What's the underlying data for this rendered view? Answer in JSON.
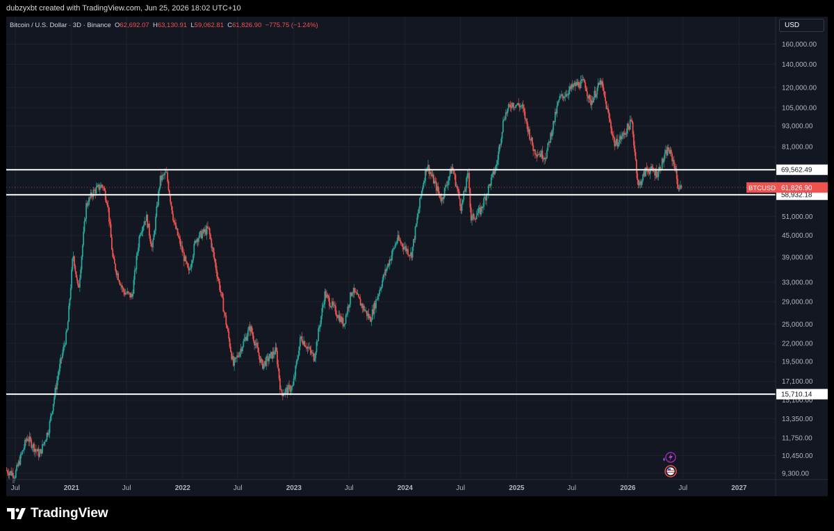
{
  "header": {
    "attribution": "dubzyxbt created with TradingView.com, Jun 25, 2026 18:02 UTC+10"
  },
  "legend": {
    "symbol": "Bitcoin / U.S. Dollar · 3D · Binance",
    "o_label": "O",
    "o_value": "62,692.07",
    "h_label": "H",
    "h_value": "63,130.91",
    "l_label": "L",
    "l_value": "59,062.81",
    "c_label": "C",
    "c_value": "61,826.90",
    "change": "−775.75 (−1.24%)"
  },
  "currency_button": "USD",
  "brand": "TradingView",
  "colors": {
    "background": "#131722",
    "up": "#26a69a",
    "down": "#ef5350",
    "level_line": "#ffffff",
    "price_tag": "#ef5350"
  },
  "icons": [
    "tradingview-logo-icon",
    "lightning-icon",
    "us-flag-icon"
  ],
  "chart_data": {
    "type": "candlestick",
    "title": "Bitcoin / U.S. Dollar · 3D · Binance",
    "symbol_tag": "BTCUSD",
    "last_price": 61826.9,
    "last_price_label": "61,826.90",
    "y_scale": "log",
    "ylim": [
      9000,
      175000
    ],
    "x_range": [
      "2020-06-01",
      "2027-05-01"
    ],
    "x_ticks": [
      {
        "date": "2020-07-01",
        "label": "Jul"
      },
      {
        "date": "2021-01-01",
        "label": "2021"
      },
      {
        "date": "2021-07-01",
        "label": "Jul"
      },
      {
        "date": "2022-01-01",
        "label": "2022"
      },
      {
        "date": "2022-07-01",
        "label": "Jul"
      },
      {
        "date": "2023-01-01",
        "label": "2023"
      },
      {
        "date": "2023-07-01",
        "label": "Jul"
      },
      {
        "date": "2024-01-01",
        "label": "2024"
      },
      {
        "date": "2024-07-01",
        "label": "Jul"
      },
      {
        "date": "2025-01-01",
        "label": "2025"
      },
      {
        "date": "2025-07-01",
        "label": "Jul"
      },
      {
        "date": "2026-01-01",
        "label": "2026"
      },
      {
        "date": "2026-07-01",
        "label": "Jul"
      },
      {
        "date": "2027-01-01",
        "label": "2027"
      }
    ],
    "y_ticks": [
      {
        "value": 160000,
        "label": "160,000.00"
      },
      {
        "value": 140000,
        "label": "140,000.00"
      },
      {
        "value": 120000,
        "label": "120,000.00"
      },
      {
        "value": 105000,
        "label": "105,000.00"
      },
      {
        "value": 93000,
        "label": "93,000.00"
      },
      {
        "value": 81000,
        "label": "81,000.00"
      },
      {
        "value": 51000,
        "label": "51,000.00"
      },
      {
        "value": 45000,
        "label": "45,000.00"
      },
      {
        "value": 39000,
        "label": "39,000.00"
      },
      {
        "value": 33000,
        "label": "33,000.00"
      },
      {
        "value": 29000,
        "label": "29,000.00"
      },
      {
        "value": 25000,
        "label": "25,000.00"
      },
      {
        "value": 22000,
        "label": "22,000.00"
      },
      {
        "value": 19500,
        "label": "19,500.00"
      },
      {
        "value": 17100,
        "label": "17,100.00"
      },
      {
        "value": 15100,
        "label": "15,100.00"
      },
      {
        "value": 13350,
        "label": "13,350.00"
      },
      {
        "value": 11750,
        "label": "11,750.00"
      },
      {
        "value": 10450,
        "label": "10,450.00"
      },
      {
        "value": 9300,
        "label": "9,300.00"
      }
    ],
    "horizontal_levels": [
      {
        "value": 69562.49,
        "label": "69,562.49"
      },
      {
        "value": 58932.18,
        "label": "58,932.18"
      },
      {
        "value": 15710.14,
        "label": "15,710.14"
      }
    ],
    "price_path": [
      {
        "date": "2020-06-01",
        "close": 9500
      },
      {
        "date": "2020-07-01",
        "close": 9200
      },
      {
        "date": "2020-08-10",
        "close": 11800
      },
      {
        "date": "2020-09-20",
        "close": 10500
      },
      {
        "date": "2020-10-20",
        "close": 12500
      },
      {
        "date": "2020-11-20",
        "close": 18000
      },
      {
        "date": "2020-12-20",
        "close": 24000
      },
      {
        "date": "2021-01-08",
        "close": 40000
      },
      {
        "date": "2021-01-25",
        "close": 31000
      },
      {
        "date": "2021-02-20",
        "close": 55000
      },
      {
        "date": "2021-03-15",
        "close": 60000
      },
      {
        "date": "2021-04-14",
        "close": 63000
      },
      {
        "date": "2021-05-01",
        "close": 56000
      },
      {
        "date": "2021-05-19",
        "close": 38000
      },
      {
        "date": "2021-06-22",
        "close": 31000
      },
      {
        "date": "2021-07-20",
        "close": 30000
      },
      {
        "date": "2021-08-15",
        "close": 46000
      },
      {
        "date": "2021-09-05",
        "close": 51000
      },
      {
        "date": "2021-09-25",
        "close": 41000
      },
      {
        "date": "2021-10-20",
        "close": 65000
      },
      {
        "date": "2021-11-10",
        "close": 68000
      },
      {
        "date": "2021-12-05",
        "close": 49000
      },
      {
        "date": "2022-01-22",
        "close": 35000
      },
      {
        "date": "2022-02-15",
        "close": 44000
      },
      {
        "date": "2022-03-28",
        "close": 47000
      },
      {
        "date": "2022-05-10",
        "close": 30000
      },
      {
        "date": "2022-06-18",
        "close": 19000
      },
      {
        "date": "2022-08-12",
        "close": 24500
      },
      {
        "date": "2022-09-20",
        "close": 19000
      },
      {
        "date": "2022-11-05",
        "close": 21000
      },
      {
        "date": "2022-11-21",
        "close": 15800
      },
      {
        "date": "2022-12-30",
        "close": 16500
      },
      {
        "date": "2023-01-25",
        "close": 23000
      },
      {
        "date": "2023-03-10",
        "close": 20000
      },
      {
        "date": "2023-04-14",
        "close": 30500
      },
      {
        "date": "2023-06-15",
        "close": 25000
      },
      {
        "date": "2023-07-13",
        "close": 31500
      },
      {
        "date": "2023-09-10",
        "close": 25800
      },
      {
        "date": "2023-10-25",
        "close": 34500
      },
      {
        "date": "2023-12-08",
        "close": 44000
      },
      {
        "date": "2024-01-23",
        "close": 39500
      },
      {
        "date": "2024-02-28",
        "close": 62000
      },
      {
        "date": "2024-03-14",
        "close": 72000
      },
      {
        "date": "2024-05-01",
        "close": 57000
      },
      {
        "date": "2024-06-05",
        "close": 71000
      },
      {
        "date": "2024-07-05",
        "close": 54000
      },
      {
        "date": "2024-07-29",
        "close": 69000
      },
      {
        "date": "2024-08-05",
        "close": 50000
      },
      {
        "date": "2024-09-06",
        "close": 53000
      },
      {
        "date": "2024-10-29",
        "close": 72000
      },
      {
        "date": "2024-11-22",
        "close": 99000
      },
      {
        "date": "2024-12-17",
        "close": 108000
      },
      {
        "date": "2025-01-20",
        "close": 106000
      },
      {
        "date": "2025-02-28",
        "close": 79000
      },
      {
        "date": "2025-04-08",
        "close": 76000
      },
      {
        "date": "2025-05-22",
        "close": 111000
      },
      {
        "date": "2025-07-14",
        "close": 122000
      },
      {
        "date": "2025-08-14",
        "close": 124000
      },
      {
        "date": "2025-09-01",
        "close": 108000
      },
      {
        "date": "2025-10-06",
        "close": 125000
      },
      {
        "date": "2025-11-21",
        "close": 82000
      },
      {
        "date": "2025-12-20",
        "close": 88000
      },
      {
        "date": "2026-01-15",
        "close": 96000
      },
      {
        "date": "2026-02-06",
        "close": 62000
      },
      {
        "date": "2026-03-05",
        "close": 70000
      },
      {
        "date": "2026-04-10",
        "close": 68000
      },
      {
        "date": "2026-05-15",
        "close": 80000
      },
      {
        "date": "2026-06-05",
        "close": 72000
      },
      {
        "date": "2026-06-16",
        "close": 62000
      },
      {
        "date": "2026-06-25",
        "close": 61826.9
      }
    ]
  }
}
